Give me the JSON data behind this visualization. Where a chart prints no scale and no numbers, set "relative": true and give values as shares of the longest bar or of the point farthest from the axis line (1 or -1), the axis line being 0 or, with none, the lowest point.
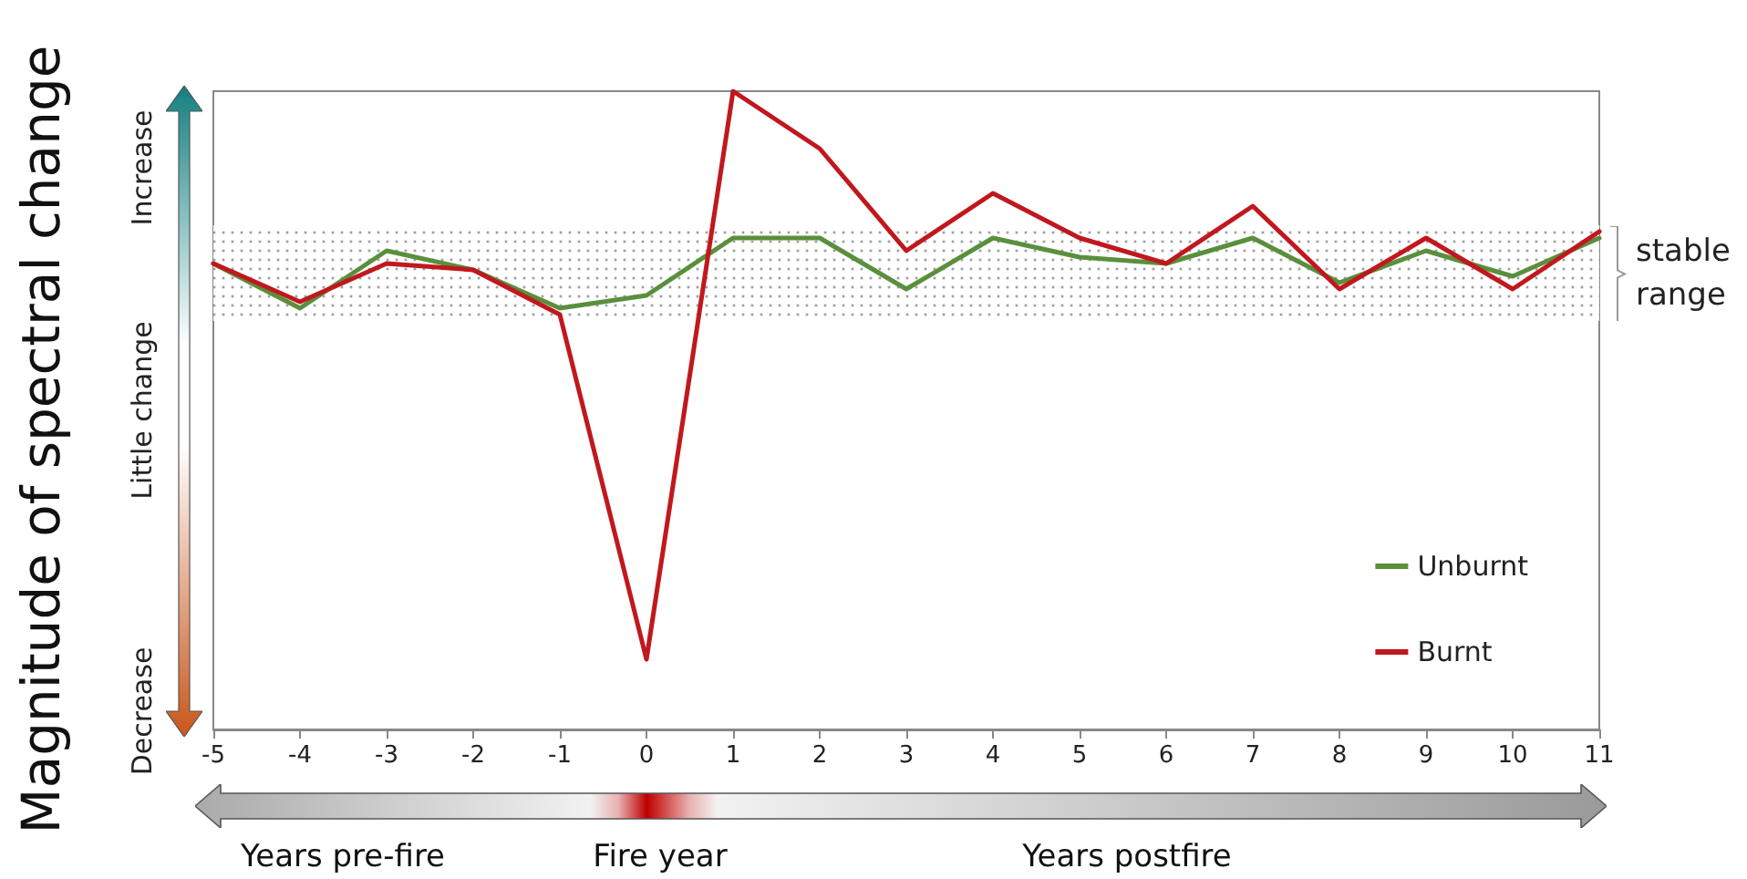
{
  "chart_data": {
    "type": "line",
    "relative": true,
    "ylabel": "Magnitude of spectral change",
    "categories": [
      "-5",
      "-4",
      "-3",
      "-2",
      "-1",
      "0",
      "1",
      "2",
      "3",
      "4",
      "5",
      "6",
      "7",
      "8",
      "9",
      "10",
      "11"
    ],
    "series": [
      {
        "name": "Unburnt",
        "color": "#5a8f3c",
        "values": [
          0.73,
          0.66,
          0.75,
          0.72,
          0.66,
          0.68,
          0.77,
          0.77,
          0.69,
          0.77,
          0.74,
          0.73,
          0.77,
          0.7,
          0.75,
          0.71,
          0.77
        ]
      },
      {
        "name": "Burnt",
        "color": "#c0181e",
        "values": [
          0.73,
          0.67,
          0.73,
          0.72,
          0.65,
          0.11,
          1,
          0.91,
          0.75,
          0.84,
          0.77,
          0.73,
          0.82,
          0.69,
          0.77,
          0.69,
          0.78
        ]
      }
    ],
    "bands": [
      {
        "axis": "y",
        "from": 0.64,
        "to": 0.79,
        "label": "stable range"
      }
    ],
    "legend": "bottom right",
    "annotations": [
      "Increase",
      "Little change",
      "Decrease",
      "Years pre-fire",
      "Fire year",
      "Years postfire"
    ]
  }
}
